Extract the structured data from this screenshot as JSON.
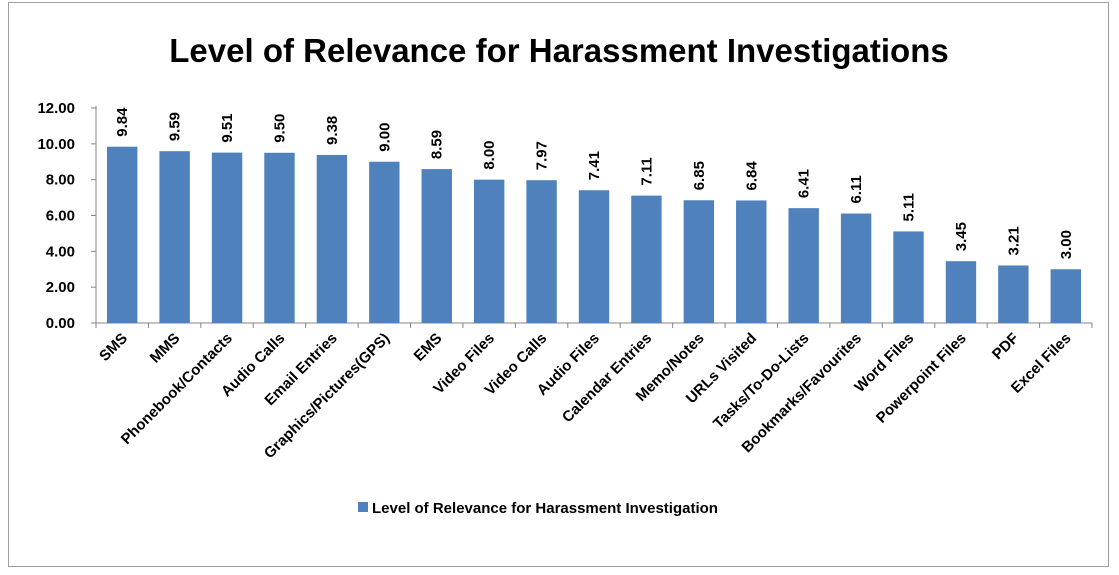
{
  "chart_data": {
    "type": "bar",
    "title": "Level of Relevance for Harassment Investigations",
    "xlabel": "",
    "ylabel": "",
    "ylim": [
      0,
      12
    ],
    "yticks": [
      "0.00",
      "2.00",
      "4.00",
      "6.00",
      "8.00",
      "10.00",
      "12.00"
    ],
    "grid": false,
    "legend_position": "bottom",
    "bar_color": "#4F81BD",
    "categories": [
      "SMS",
      "MMS",
      "Phonebook/Contacts",
      "Audio Calls",
      "Email Entries",
      "Graphics/Pictures(GPS)",
      "EMS",
      "Video Files",
      "Video Calls",
      "Audio Files",
      "Calendar Entries",
      "Memo/Notes",
      "URLs Visited",
      "Tasks/To-Do-Lists",
      "Bookmarks/Favourites",
      "Word Files",
      "Powerpoint Files",
      "PDF",
      "Excel Files"
    ],
    "series": [
      {
        "name": "Level of Relevance for Harassment Investigation",
        "values": [
          9.84,
          9.59,
          9.51,
          9.5,
          9.38,
          9.0,
          8.59,
          8.0,
          7.97,
          7.41,
          7.11,
          6.85,
          6.84,
          6.41,
          6.11,
          5.11,
          3.45,
          3.21,
          3.0
        ],
        "labels": [
          "9.84",
          "9.59",
          "9.51",
          "9.50",
          "9.38",
          "9.00",
          "8.59",
          "8.00",
          "7.97",
          "7.41",
          "7.11",
          "6.85",
          "6.84",
          "6.41",
          "6.11",
          "5.11",
          "3.45",
          "3.21",
          "3.00"
        ]
      }
    ]
  }
}
